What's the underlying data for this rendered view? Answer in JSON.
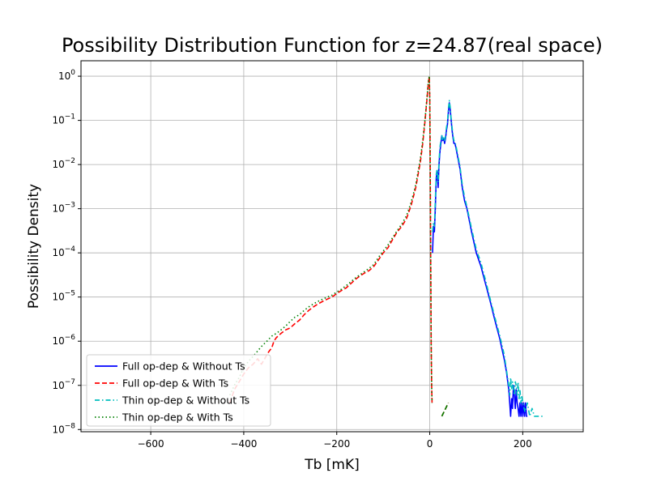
{
  "chart_data": {
    "type": "line",
    "title": "Possibility Distribution Function for z=24.87(real space)",
    "xlabel": "Tb [mK]",
    "ylabel": "Possibility Density",
    "xlim": [
      -750,
      330
    ],
    "ylim_log10": [
      -8.05,
      0.35
    ],
    "y_scale": "log",
    "grid": true,
    "legend_position": "lower-left",
    "x_ticks": [
      -600,
      -400,
      -200,
      0,
      200
    ],
    "x_tick_labels": [
      "−600",
      "−400",
      "−200",
      "0",
      "200"
    ],
    "y_ticks": [
      1,
      0.1,
      0.01,
      0.001,
      0.0001,
      1e-05,
      1e-06,
      1e-07,
      1e-08
    ],
    "y_tick_base": "10",
    "y_tick_exponents": [
      "0",
      "−1",
      "−2",
      "−3",
      "−4",
      "−5",
      "−6",
      "−7",
      "−8"
    ],
    "series": [
      {
        "name": "Full op-dep & Without Ts",
        "color": "#0000ff",
        "style": "solid",
        "x": [
          6,
          8,
          10,
          12,
          14,
          16,
          18,
          20,
          22,
          24,
          26,
          28,
          30,
          32,
          34,
          36,
          38,
          40,
          42,
          44,
          46,
          48,
          50,
          52,
          54,
          56,
          60,
          65,
          70,
          75,
          80,
          90,
          100,
          110,
          120,
          130,
          140,
          150,
          160,
          165,
          170,
          172,
          174,
          176,
          178,
          180,
          182,
          184,
          186,
          188,
          190,
          192,
          194,
          196,
          198,
          200,
          202,
          204,
          206,
          208,
          210
        ],
        "y": [
          0.0001,
          0.0004,
          0.0003,
          0.001,
          0.005,
          0.007,
          0.003,
          0.01,
          0.02,
          0.03,
          0.045,
          0.035,
          0.04,
          0.03,
          0.04,
          0.06,
          0.08,
          0.15,
          0.25,
          0.18,
          0.1,
          0.06,
          0.04,
          0.03,
          0.03,
          0.025,
          0.015,
          0.008,
          0.003,
          0.0015,
          0.001,
          0.0003,
          0.0001,
          5e-05,
          2e-05,
          8e-06,
          3e-06,
          1.2e-06,
          4e-07,
          2e-07,
          8e-08,
          4e-08,
          2e-08,
          5e-08,
          3e-08,
          1e-07,
          6e-08,
          3e-08,
          8e-08,
          4e-08,
          3e-08,
          2e-08,
          4e-08,
          2e-08,
          4e-08,
          2e-08,
          4e-08,
          2e-08,
          4e-08,
          2e-08,
          2e-08
        ]
      },
      {
        "name": "Full op-dep & With Ts",
        "color": "#ff0000",
        "style": "dashed",
        "x": [
          -430,
          -420,
          -410,
          -400,
          -390,
          -380,
          -370,
          -362,
          -355,
          -350,
          -345,
          -340,
          -335,
          -330,
          -320,
          -310,
          -300,
          -290,
          -280,
          -270,
          -260,
          -250,
          -240,
          -230,
          -220,
          -210,
          -200,
          -190,
          -180,
          -170,
          -160,
          -150,
          -140,
          -130,
          -120,
          -110,
          -100,
          -90,
          -80,
          -70,
          -60,
          -50,
          -40,
          -30,
          -25,
          -20,
          -15,
          -10,
          -6,
          -3,
          -1,
          0,
          1,
          2,
          3,
          4,
          5
        ],
        "y": [
          4e-08,
          8e-08,
          1.2e-07,
          1.8e-07,
          2.5e-07,
          3e-07,
          4e-07,
          3e-07,
          4e-07,
          5e-07,
          6e-07,
          7e-07,
          1e-06,
          1.2e-06,
          1.5e-06,
          1.8e-06,
          2e-06,
          2.5e-06,
          3e-06,
          4e-06,
          5e-06,
          6e-06,
          7e-06,
          8e-06,
          9e-06,
          1e-05,
          1.2e-05,
          1.4e-05,
          1.6e-05,
          2e-05,
          2.5e-05,
          3e-05,
          3.5e-05,
          4e-05,
          5e-05,
          7e-05,
          0.0001,
          0.00013,
          0.0002,
          0.0003,
          0.0004,
          0.0006,
          0.0012,
          0.003,
          0.006,
          0.012,
          0.03,
          0.1,
          0.3,
          0.7,
          1,
          0.3,
          0.01,
          0.0001,
          1e-06,
          1e-07,
          4e-08
        ]
      },
      {
        "name": "Thin op-dep & Without Ts",
        "color": "#00bfbf",
        "style": "dashdot",
        "x": [
          6,
          8,
          10,
          12,
          14,
          16,
          18,
          20,
          22,
          24,
          26,
          28,
          30,
          32,
          34,
          36,
          38,
          40,
          42,
          44,
          46,
          48,
          50,
          52,
          54,
          56,
          60,
          65,
          70,
          75,
          80,
          90,
          100,
          110,
          120,
          130,
          140,
          150,
          160,
          165,
          170,
          172,
          174,
          176,
          178,
          180,
          182,
          184,
          186,
          188,
          190,
          192,
          194,
          196,
          198,
          200,
          205,
          210,
          215,
          220,
          225,
          230,
          235,
          240,
          245
        ],
        "y": [
          0.0003,
          0.0005,
          0.0004,
          0.0015,
          0.006,
          0.008,
          0.004,
          0.012,
          0.025,
          0.035,
          0.045,
          0.035,
          0.04,
          0.035,
          0.045,
          0.07,
          0.09,
          0.18,
          0.28,
          0.2,
          0.11,
          0.07,
          0.045,
          0.035,
          0.032,
          0.028,
          0.017,
          0.009,
          0.0035,
          0.0018,
          0.0011,
          0.00035,
          0.00012,
          6e-05,
          2.4e-05,
          9e-06,
          3.5e-06,
          1.4e-06,
          5e-07,
          2.2e-07,
          1e-07,
          6e-08,
          1.5e-07,
          8e-08,
          1.2e-07,
          8e-08,
          6e-08,
          1.2e-07,
          1e-07,
          6e-08,
          1.2e-07,
          5e-08,
          8e-08,
          4e-08,
          6e-08,
          4e-08,
          2.5e-08,
          4e-08,
          2e-08,
          3e-08,
          2e-08,
          2e-08,
          2e-08,
          2e-08,
          2e-08
        ]
      },
      {
        "name": "Thin op-dep & With Ts",
        "color": "#008000",
        "style": "dotted",
        "x": [
          -430,
          -420,
          -410,
          -400,
          -390,
          -380,
          -370,
          -360,
          -350,
          -340,
          -330,
          -320,
          -310,
          -300,
          -290,
          -280,
          -270,
          -260,
          -250,
          -240,
          -230,
          -220,
          -210,
          -200,
          -190,
          -180,
          -170,
          -160,
          -150,
          -140,
          -130,
          -120,
          -110,
          -100,
          -90,
          -80,
          -70,
          -60,
          -50,
          -40,
          -30,
          -25,
          -20,
          -15,
          -10,
          -6,
          -3,
          -1,
          0,
          1,
          2,
          3,
          4,
          5
        ],
        "y": [
          6e-08,
          1e-07,
          1.5e-07,
          2.5e-07,
          3.5e-07,
          4.5e-07,
          6e-07,
          8e-07,
          1e-06,
          1.3e-06,
          1.5e-06,
          1.8e-06,
          2.2e-06,
          2.8e-06,
          3.5e-06,
          4e-06,
          5e-06,
          6e-06,
          7e-06,
          8e-06,
          9e-06,
          1e-05,
          1.1e-05,
          1.3e-05,
          1.5e-05,
          1.8e-05,
          2.2e-05,
          2.7e-05,
          3.2e-05,
          3.8e-05,
          4.5e-05,
          5.5e-05,
          8e-05,
          0.00011,
          0.00015,
          0.00022,
          0.00032,
          0.00045,
          0.0007,
          0.0014,
          0.0035,
          0.007,
          0.014,
          0.035,
          0.11,
          0.32,
          0.75,
          1,
          0.3,
          0.01,
          0.0001,
          1e-06,
          1e-07,
          4e-08
        ]
      }
    ],
    "extra_segments": [
      {
        "series": "Full op-dep & With Ts",
        "color": "#ff0000",
        "x": [
          26,
          40
        ],
        "y": [
          2e-08,
          4e-08
        ]
      },
      {
        "series": "Thin op-dep & With Ts",
        "color": "#008000",
        "x": [
          26,
          40
        ],
        "y": [
          2e-08,
          4e-08
        ]
      }
    ]
  }
}
